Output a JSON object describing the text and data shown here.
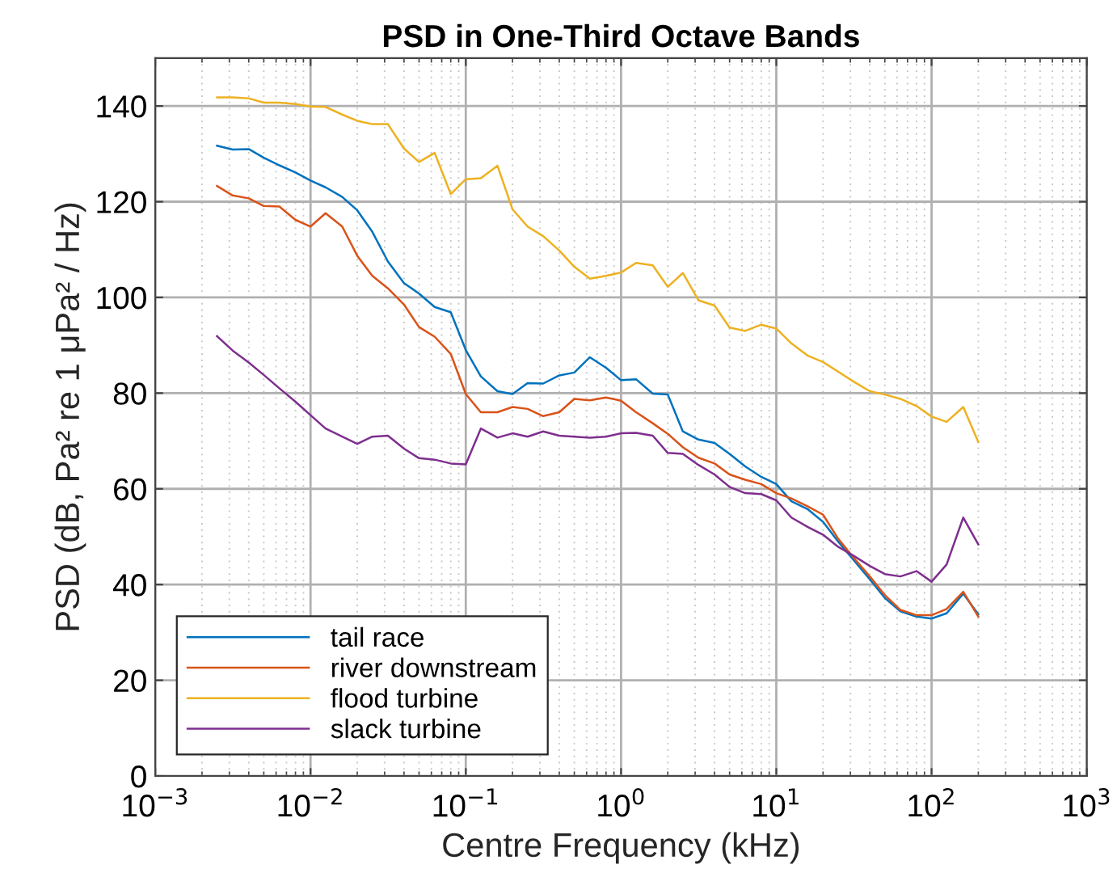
{
  "chart_data": {
    "type": "line",
    "title": "PSD in One-Third Octave Bands",
    "xlabel": "Centre Frequency (kHz)",
    "ylabel": "PSD (dB, Pa² re 1 μPa² / Hz)",
    "log": "x",
    "grid": true,
    "legend": "bottom left",
    "line_style": "solid",
    "marker": "none",
    "xlim": [
      0.001,
      1000
    ],
    "ylim": [
      0,
      150
    ],
    "xticks": [
      {
        "value": 0.001,
        "label": "10$^{−3}$"
      },
      {
        "value": 0.01,
        "label": "10$^{−2}$"
      },
      {
        "value": 0.1,
        "label": "10$^{−1}$"
      },
      {
        "value": 1,
        "label": "10$^{0}$"
      },
      {
        "value": 10,
        "label": "10$^{1}$"
      },
      {
        "value": 100,
        "label": "10$^{2}$"
      },
      {
        "value": 1000,
        "label": "10$^{3}$"
      }
    ],
    "yticks": [
      0,
      20,
      40,
      60,
      80,
      100,
      120,
      140
    ],
    "x": [
      0.0025,
      0.00315,
      0.004,
      0.005,
      0.0063,
      0.008,
      0.01,
      0.0125,
      0.016,
      0.02,
      0.025,
      0.0315,
      0.04,
      0.05,
      0.063,
      0.08,
      0.1,
      0.125,
      0.16,
      0.2,
      0.25,
      0.315,
      0.4,
      0.5,
      0.63,
      0.8,
      1,
      1.25,
      1.6,
      2,
      2.5,
      3.15,
      4,
      5,
      6.3,
      8,
      10,
      12.5,
      16,
      20,
      25,
      31.5,
      40,
      50,
      63,
      80,
      100,
      125,
      160,
      200
    ],
    "series": [
      {
        "name": "tail race",
        "color": "#0072bd",
        "values": [
          131.7,
          130.9,
          131,
          129.2,
          127.6,
          126.1,
          124.4,
          123,
          121,
          118.2,
          113.7,
          107.5,
          103,
          100.8,
          98,
          96.9,
          89,
          83.5,
          80.4,
          79.8,
          82.1,
          82,
          83.7,
          84.3,
          87.5,
          85.3,
          82.7,
          82.9,
          79.9,
          79.7,
          72,
          70.3,
          69.6,
          67.3,
          64.7,
          62.5,
          61,
          57.4,
          55.7,
          53.1,
          49,
          45.1,
          41.1,
          37.2,
          34.4,
          33.3,
          32.9,
          34,
          38.1,
          33.8
        ]
      },
      {
        "name": "river downstream",
        "color": "#d95319",
        "values": [
          123.3,
          121.3,
          120.7,
          119.1,
          119,
          116.2,
          114.8,
          117.6,
          114.8,
          108.7,
          104.5,
          101.9,
          98.5,
          93.8,
          91.8,
          88.2,
          79.8,
          76,
          76,
          77.1,
          76.7,
          75.2,
          76,
          78.8,
          78.5,
          79.1,
          78.4,
          76,
          73.7,
          71.5,
          68.7,
          66.5,
          65.3,
          63,
          61.9,
          61,
          59.1,
          58,
          56.3,
          54.6,
          49.6,
          45.6,
          41.7,
          37.8,
          34.7,
          33.6,
          33.6,
          34.9,
          38.5,
          33.3
        ]
      },
      {
        "name": "flood turbine",
        "color": "#edb120",
        "values": [
          141.8,
          141.8,
          141.6,
          140.7,
          140.7,
          140.4,
          139.9,
          139.8,
          138.2,
          136.9,
          136.2,
          136.2,
          131.1,
          128.3,
          130.2,
          121.6,
          124.7,
          124.9,
          127.5,
          118.4,
          114.8,
          112.8,
          109.8,
          106.4,
          103.9,
          104.5,
          105.2,
          107.2,
          106.7,
          102.2,
          105.1,
          99.4,
          98.3,
          93.7,
          93,
          94.3,
          93.5,
          90.4,
          87.8,
          86.5,
          84.5,
          82.4,
          80.4,
          79.7,
          78.8,
          77.3,
          75.1,
          74,
          77.1,
          69.8
        ]
      },
      {
        "name": "slack turbine",
        "color": "#7e2f8e",
        "values": [
          91.9,
          88.9,
          86.4,
          83.8,
          81,
          78.2,
          75.4,
          72.6,
          70.9,
          69.4,
          70.9,
          71.1,
          68.4,
          66.4,
          66.1,
          65.3,
          65.1,
          72.6,
          70.7,
          71.6,
          70.9,
          72,
          71.1,
          70.9,
          70.7,
          70.9,
          71.6,
          71.7,
          71.1,
          67.5,
          67.3,
          65,
          63,
          60.4,
          59.1,
          58.9,
          57.6,
          54,
          52,
          50.4,
          47.9,
          46,
          43.9,
          42.2,
          41.7,
          42.8,
          40.6,
          44.2,
          54,
          48.4
        ]
      }
    ]
  }
}
